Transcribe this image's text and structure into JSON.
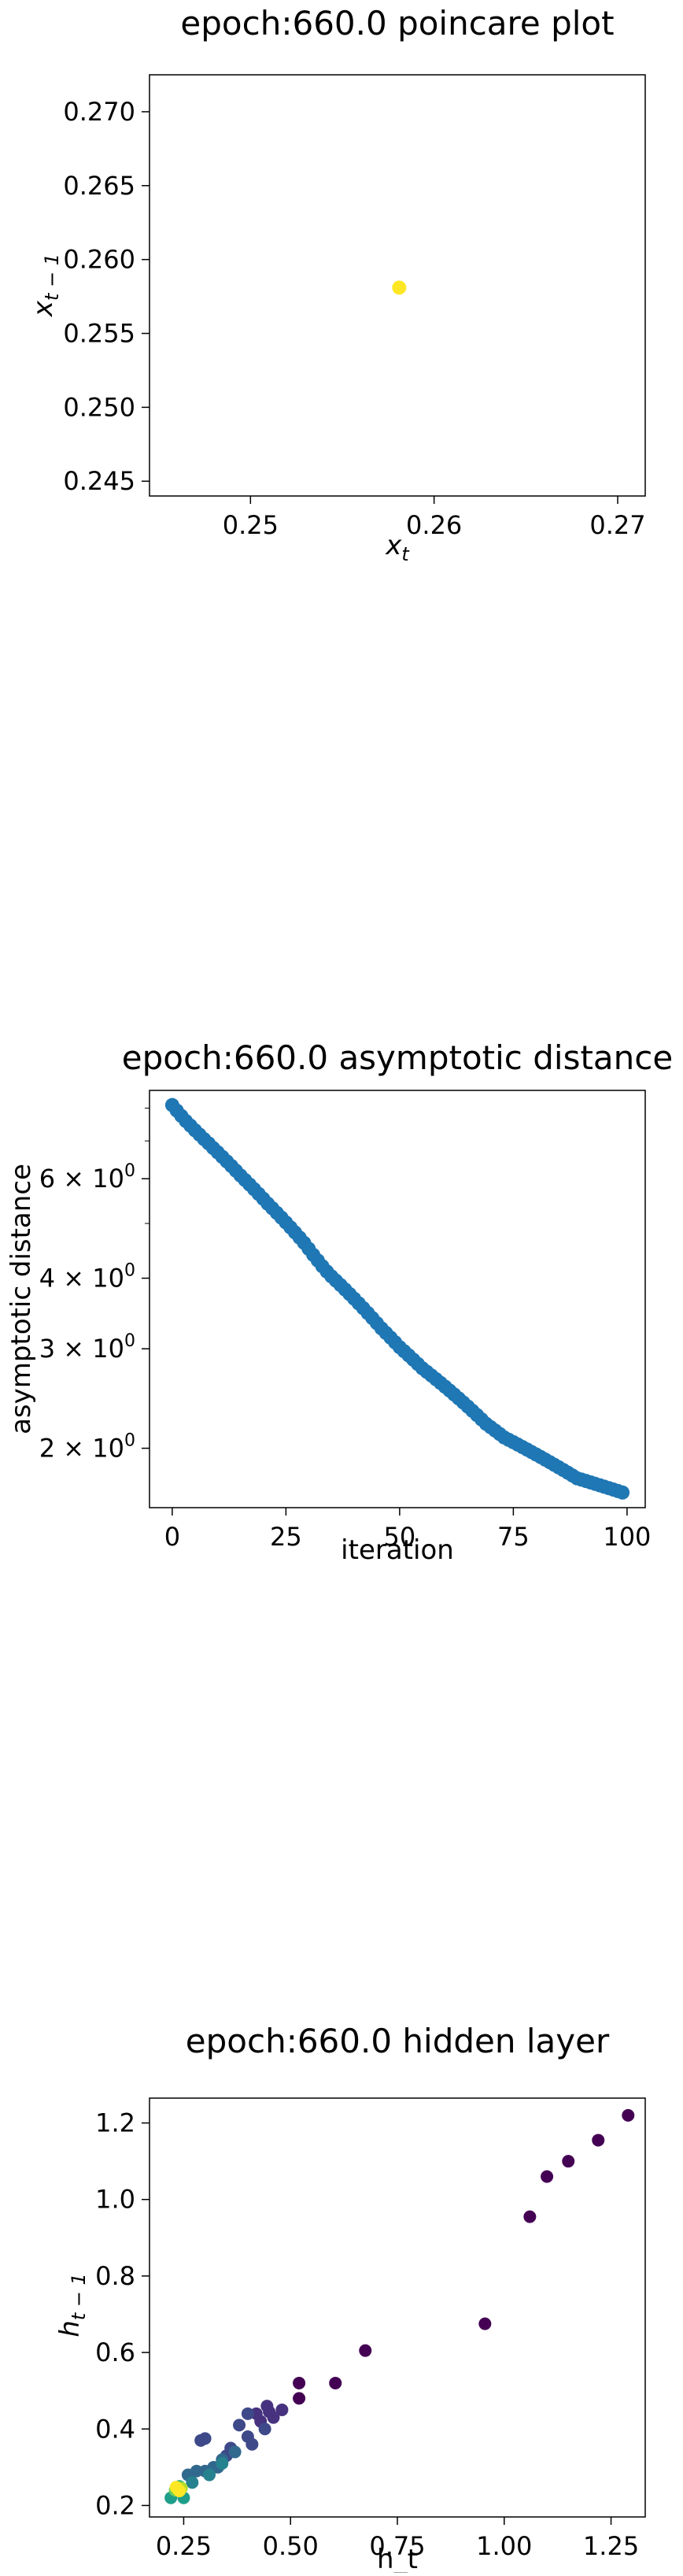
{
  "chart_data": [
    {
      "type": "scatter",
      "title": "epoch:660.0 poincare plot",
      "xlabel": "x_t",
      "ylabel": "x_{t-1}",
      "xlim": [
        0.2445,
        0.2715
      ],
      "ylim": [
        0.244,
        0.2725
      ],
      "xticks": [
        0.25,
        0.26,
        0.27
      ],
      "xtick_labels": [
        "0.25",
        "0.26",
        "0.27"
      ],
      "yticks": [
        0.245,
        0.25,
        0.255,
        0.26,
        0.265,
        0.27
      ],
      "ytick_labels": [
        "0.245",
        "0.250",
        "0.255",
        "0.260",
        "0.265",
        "0.270"
      ],
      "grid": false,
      "points": [
        {
          "x": 0.2581,
          "y": 0.2581,
          "color": "#fde725"
        }
      ]
    },
    {
      "type": "scatter",
      "title": "epoch:660.0 asymptotic distance",
      "xlabel": "iteration",
      "ylabel": "asymptotic distance",
      "xscale": "linear",
      "yscale": "log",
      "xlim": [
        -5,
        104
      ],
      "ylim": [
        1.57,
        8.6
      ],
      "xticks": [
        0,
        25,
        50,
        75,
        100
      ],
      "xtick_labels": [
        "0",
        "25",
        "50",
        "75",
        "100"
      ],
      "yticks": [
        2,
        3,
        4,
        6
      ],
      "ytick_labels": [
        "2 × 10⁰",
        "3 × 10⁰",
        "4 × 10⁰",
        "6 × 10⁰"
      ],
      "grid": false,
      "color": "#1f77b4",
      "series": [
        {
          "x_start": 0,
          "x_step": 1,
          "values": [
            8.1,
            7.92,
            7.75,
            7.59,
            7.45,
            7.31,
            7.18,
            7.05,
            6.93,
            6.8,
            6.68,
            6.56,
            6.44,
            6.32,
            6.2,
            6.08,
            5.97,
            5.86,
            5.75,
            5.64,
            5.53,
            5.42,
            5.32,
            5.22,
            5.12,
            5.02,
            4.92,
            4.82,
            4.72,
            4.62,
            4.51,
            4.4,
            4.3,
            4.2,
            4.11,
            4.03,
            3.96,
            3.89,
            3.82,
            3.75,
            3.68,
            3.61,
            3.54,
            3.47,
            3.4,
            3.33,
            3.26,
            3.2,
            3.14,
            3.08,
            3.02,
            2.97,
            2.92,
            2.87,
            2.82,
            2.77,
            2.73,
            2.69,
            2.65,
            2.61,
            2.57,
            2.53,
            2.49,
            2.45,
            2.41,
            2.37,
            2.33,
            2.29,
            2.25,
            2.21,
            2.18,
            2.15,
            2.12,
            2.09,
            2.07,
            2.05,
            2.03,
            2.01,
            1.99,
            1.97,
            1.95,
            1.93,
            1.91,
            1.89,
            1.87,
            1.85,
            1.83,
            1.81,
            1.79,
            1.77,
            1.76,
            1.75,
            1.74,
            1.73,
            1.72,
            1.71,
            1.7,
            1.69,
            1.68,
            1.67
          ]
        }
      ]
    },
    {
      "type": "scatter",
      "title": "epoch:660.0 hidden layer",
      "xlabel": "h_t",
      "ylabel": "h_{t-1}",
      "xlim": [
        0.17,
        1.33
      ],
      "ylim": [
        0.17,
        1.265
      ],
      "xticks": [
        0.25,
        0.5,
        0.75,
        1.0,
        1.25
      ],
      "xtick_labels": [
        "0.25",
        "0.50",
        "0.75",
        "1.00",
        "1.25"
      ],
      "yticks": [
        0.2,
        0.4,
        0.6,
        0.8,
        1.0,
        1.2
      ],
      "ytick_labels": [
        "0.2",
        "0.4",
        "0.6",
        "0.8",
        "1.0",
        "1.2"
      ],
      "grid": false,
      "points": [
        {
          "x": 1.29,
          "y": 1.22,
          "color": "#440154"
        },
        {
          "x": 1.22,
          "y": 1.155,
          "color": "#440154"
        },
        {
          "x": 1.15,
          "y": 1.1,
          "color": "#440154"
        },
        {
          "x": 1.1,
          "y": 1.06,
          "color": "#440154"
        },
        {
          "x": 1.06,
          "y": 0.955,
          "color": "#440154"
        },
        {
          "x": 0.955,
          "y": 0.675,
          "color": "#440154"
        },
        {
          "x": 0.675,
          "y": 0.605,
          "color": "#440154"
        },
        {
          "x": 0.605,
          "y": 0.52,
          "color": "#440154"
        },
        {
          "x": 0.52,
          "y": 0.52,
          "color": "#440154"
        },
        {
          "x": 0.52,
          "y": 0.48,
          "color": "#440154"
        },
        {
          "x": 0.48,
          "y": 0.45,
          "color": "#46327e"
        },
        {
          "x": 0.45,
          "y": 0.445,
          "color": "#46327e"
        },
        {
          "x": 0.445,
          "y": 0.46,
          "color": "#46327e"
        },
        {
          "x": 0.46,
          "y": 0.43,
          "color": "#46327e"
        },
        {
          "x": 0.43,
          "y": 0.42,
          "color": "#46327e"
        },
        {
          "x": 0.42,
          "y": 0.44,
          "color": "#46327e"
        },
        {
          "x": 0.44,
          "y": 0.4,
          "color": "#3e4989"
        },
        {
          "x": 0.4,
          "y": 0.44,
          "color": "#3e4989"
        },
        {
          "x": 0.4,
          "y": 0.38,
          "color": "#3e4989"
        },
        {
          "x": 0.38,
          "y": 0.41,
          "color": "#3e4989"
        },
        {
          "x": 0.41,
          "y": 0.36,
          "color": "#3e4989"
        },
        {
          "x": 0.36,
          "y": 0.35,
          "color": "#3e4989"
        },
        {
          "x": 0.35,
          "y": 0.33,
          "color": "#3e4989"
        },
        {
          "x": 0.33,
          "y": 0.3,
          "color": "#31688e"
        },
        {
          "x": 0.3,
          "y": 0.375,
          "color": "#3e4989"
        },
        {
          "x": 0.29,
          "y": 0.37,
          "color": "#3e4989"
        },
        {
          "x": 0.37,
          "y": 0.34,
          "color": "#31688e"
        },
        {
          "x": 0.34,
          "y": 0.32,
          "color": "#31688e"
        },
        {
          "x": 0.32,
          "y": 0.3,
          "color": "#31688e"
        },
        {
          "x": 0.3,
          "y": 0.29,
          "color": "#31688e"
        },
        {
          "x": 0.28,
          "y": 0.29,
          "color": "#31688e"
        },
        {
          "x": 0.26,
          "y": 0.28,
          "color": "#31688e"
        },
        {
          "x": 0.27,
          "y": 0.26,
          "color": "#26828e"
        },
        {
          "x": 0.34,
          "y": 0.31,
          "color": "#26828e"
        },
        {
          "x": 0.31,
          "y": 0.28,
          "color": "#26828e"
        },
        {
          "x": 0.22,
          "y": 0.22,
          "color": "#1f9e89"
        },
        {
          "x": 0.25,
          "y": 0.22,
          "color": "#1f9e89"
        },
        {
          "x": 0.24,
          "y": 0.25,
          "color": "#35b779"
        },
        {
          "x": 0.23,
          "y": 0.24,
          "color": "#6ece58"
        },
        {
          "x": 0.245,
          "y": 0.245,
          "color": "#b5de2b"
        },
        {
          "x": 0.232,
          "y": 0.248,
          "color": "#fde725"
        },
        {
          "x": 0.24,
          "y": 0.238,
          "color": "#fde725"
        },
        {
          "x": 0.236,
          "y": 0.243,
          "color": "#fde725"
        }
      ]
    }
  ]
}
